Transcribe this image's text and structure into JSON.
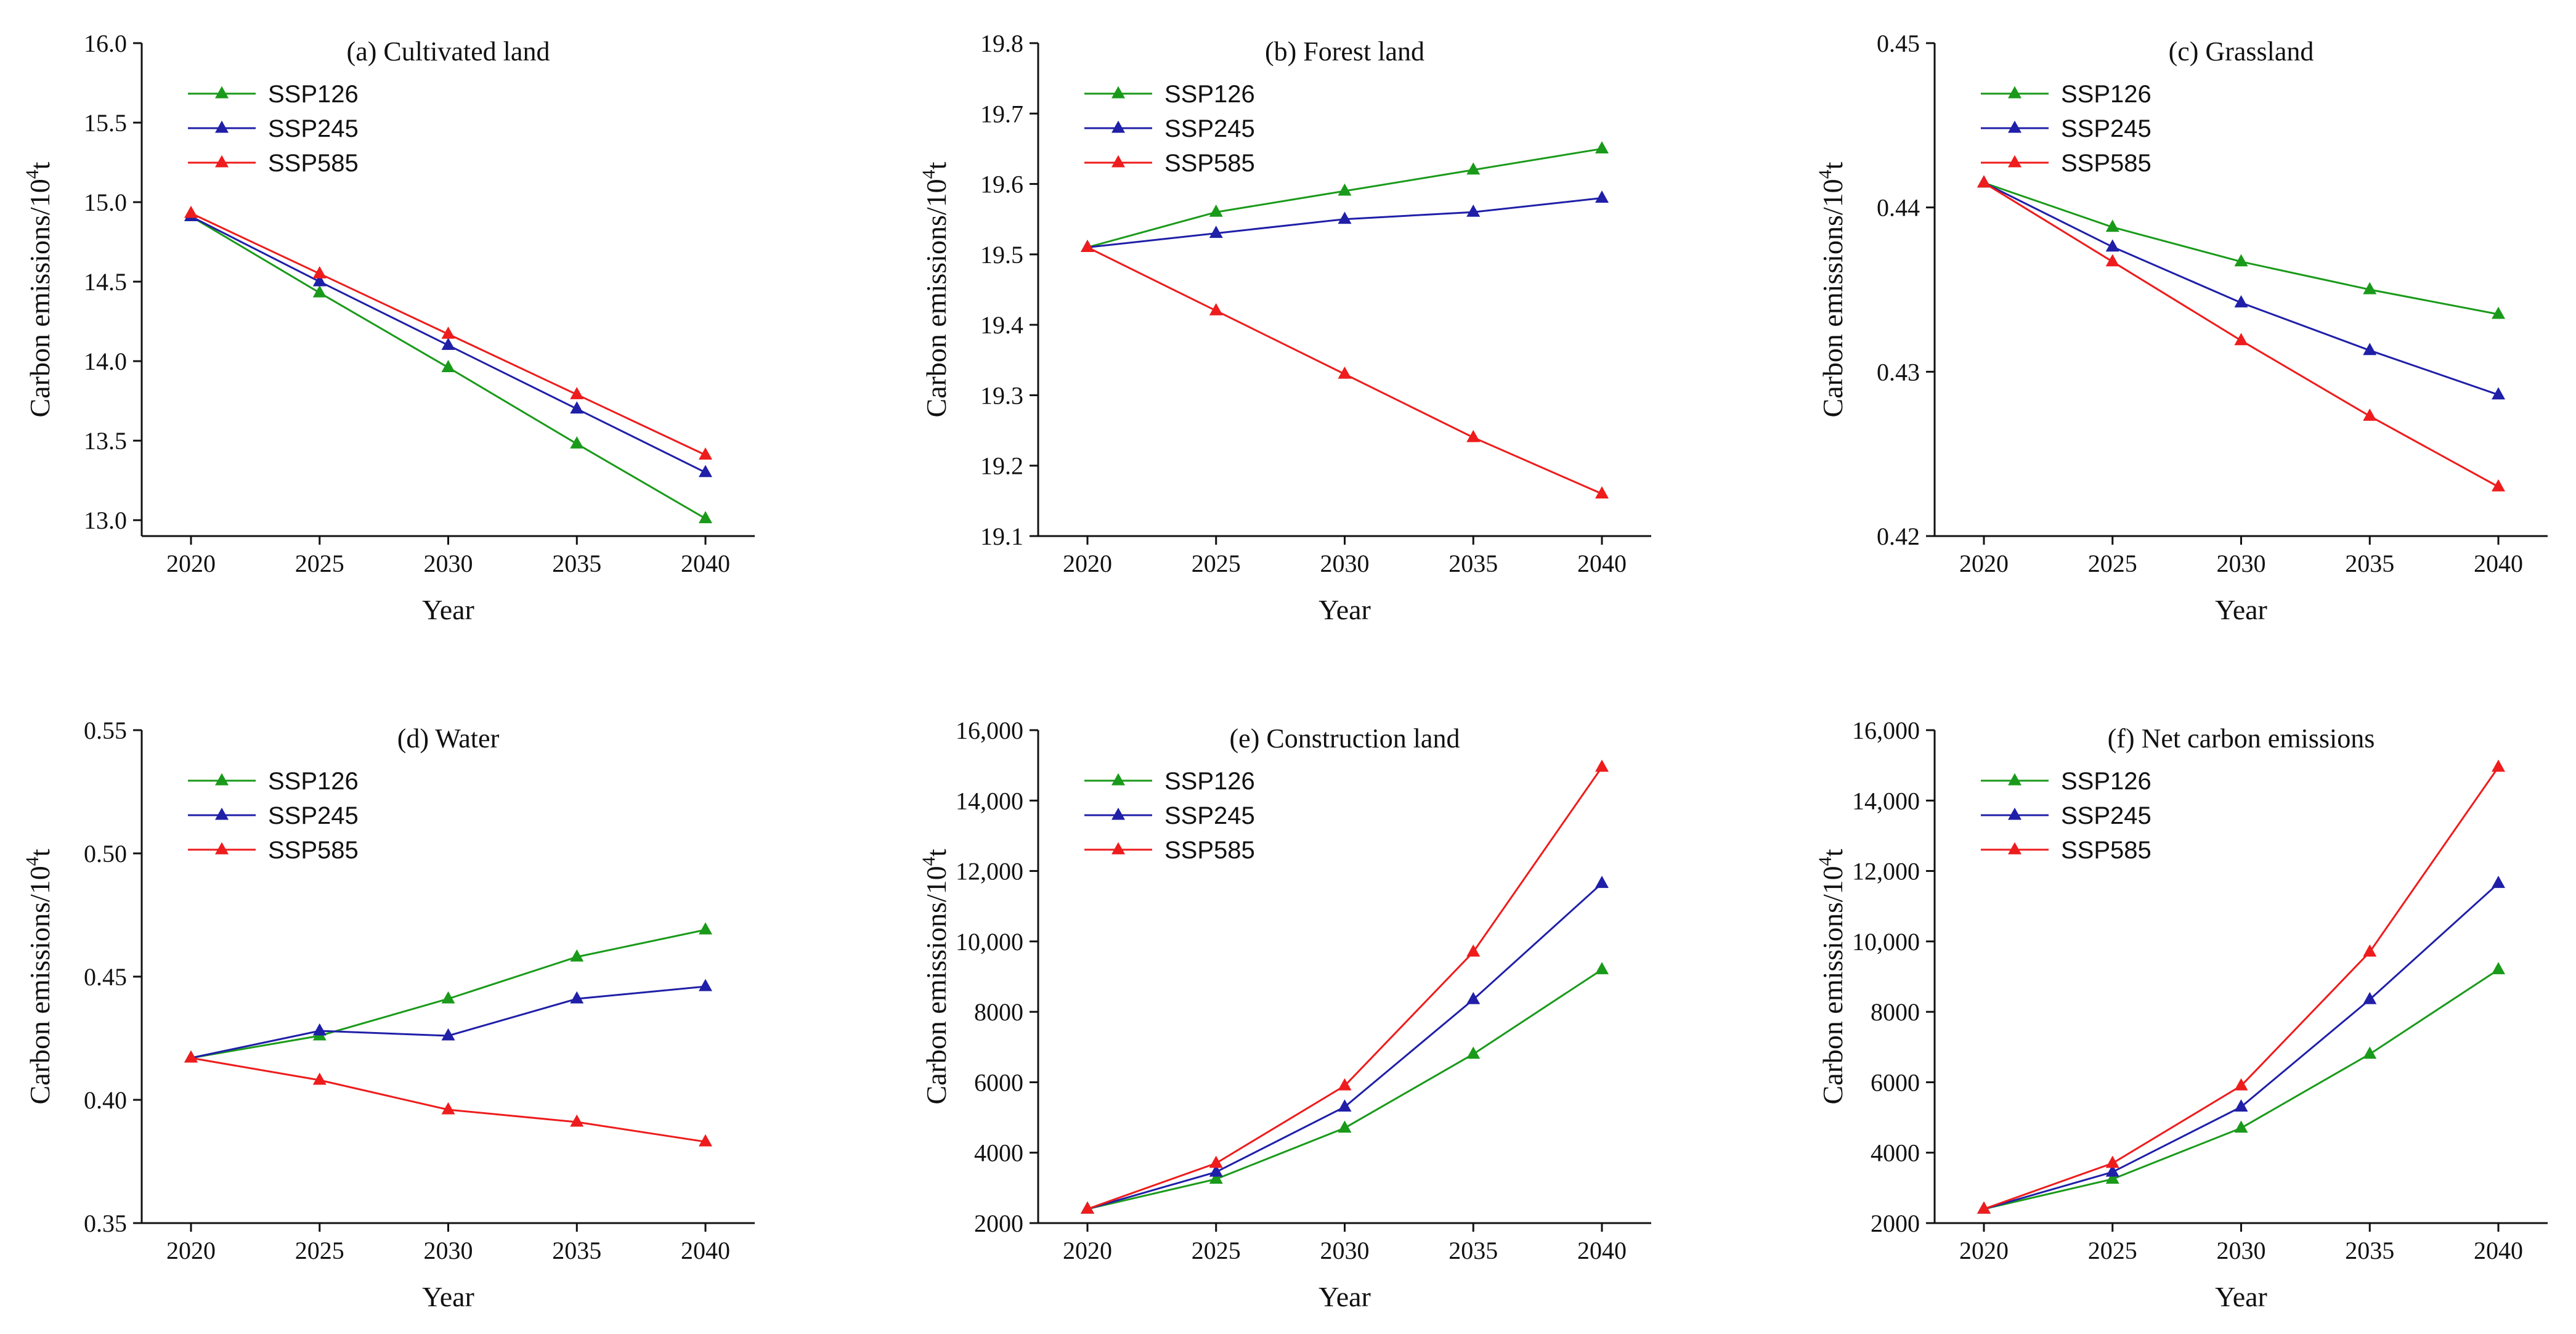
{
  "chart_data": [
    {
      "type": "line",
      "title": "(a) Cultivated land",
      "xlabel": "Year",
      "ylabel": "Carbon emissions/10",
      "ylabel_sup": "4",
      "ylabel_tail": "t",
      "x": [
        2020,
        2025,
        2030,
        2035,
        2040
      ],
      "xticks": [
        "2020",
        "2025",
        "2030",
        "2035",
        "2040"
      ],
      "ylim": [
        12.9,
        16.0
      ],
      "yticks": [
        13.0,
        13.5,
        14.0,
        14.5,
        15.0,
        15.5,
        16.0
      ],
      "ytick_labels": [
        "13.0",
        "13.5",
        "14.0",
        "14.5",
        "15.0",
        "15.5",
        "16.0"
      ],
      "series": [
        {
          "name": "SSP126",
          "color": "#1a9a1a",
          "values": [
            14.91,
            14.43,
            13.96,
            13.48,
            13.01
          ]
        },
        {
          "name": "SSP245",
          "color": "#1f1fa8",
          "values": [
            14.91,
            14.5,
            14.1,
            13.7,
            13.3
          ]
        },
        {
          "name": "SSP585",
          "color": "#ee1c1c",
          "values": [
            14.93,
            14.55,
            14.17,
            13.79,
            13.41
          ]
        }
      ]
    },
    {
      "type": "line",
      "title": "(b) Forest land",
      "xlabel": "Year",
      "ylabel": "Carbon emissions/10",
      "ylabel_sup": "4",
      "ylabel_tail": "t",
      "x": [
        2020,
        2025,
        2030,
        2035,
        2040
      ],
      "xticks": [
        "2020",
        "2025",
        "2030",
        "2035",
        "2040"
      ],
      "ylim": [
        19.1,
        19.8
      ],
      "yticks": [
        19.1,
        19.2,
        19.3,
        19.4,
        19.5,
        19.6,
        19.7,
        19.8
      ],
      "ytick_labels": [
        "19.1",
        "19.2",
        "19.3",
        "19.4",
        "19.5",
        "19.6",
        "19.7",
        "19.8"
      ],
      "series": [
        {
          "name": "SSP126",
          "color": "#1a9a1a",
          "values": [
            19.51,
            19.56,
            19.59,
            19.62,
            19.65
          ]
        },
        {
          "name": "SSP245",
          "color": "#1f1fa8",
          "values": [
            19.51,
            19.53,
            19.55,
            19.56,
            19.58
          ]
        },
        {
          "name": "SSP585",
          "color": "#ee1c1c",
          "values": [
            19.51,
            19.42,
            19.33,
            19.24,
            19.16
          ]
        }
      ]
    },
    {
      "type": "line",
      "title": "(c) Grassland",
      "xlabel": "Year",
      "ylabel": "Carbon emissions/10",
      "ylabel_sup": "4",
      "ylabel_tail": "t",
      "x": [
        2020,
        2025,
        2030,
        2035,
        2040
      ],
      "xticks": [
        "2020",
        "2025",
        "2030",
        "2035",
        "2040"
      ],
      "ylim": [
        0.42,
        0.45
      ],
      "yticks": [
        0.42,
        0.43,
        0.44,
        0.45
      ],
      "ytick_labels": [
        "0.42",
        "0.43",
        "0.44",
        "0.45"
      ],
      "series": [
        {
          "name": "SSP126",
          "color": "#1a9a1a",
          "values": [
            0.4415,
            0.4388,
            0.4367,
            0.435,
            0.4335
          ]
        },
        {
          "name": "SSP245",
          "color": "#1f1fa8",
          "values": [
            0.4415,
            0.4376,
            0.4342,
            0.4313,
            0.4286
          ]
        },
        {
          "name": "SSP585",
          "color": "#ee1c1c",
          "values": [
            0.4415,
            0.4367,
            0.4319,
            0.4273,
            0.423
          ]
        }
      ]
    },
    {
      "type": "line",
      "title": "(d) Water",
      "xlabel": "Year",
      "ylabel": "Carbon emissions/10",
      "ylabel_sup": "4",
      "ylabel_tail": "t",
      "x": [
        2020,
        2025,
        2030,
        2035,
        2040
      ],
      "xticks": [
        "2020",
        "2025",
        "2030",
        "2035",
        "2040"
      ],
      "ylim": [
        0.35,
        0.55
      ],
      "yticks": [
        0.35,
        0.4,
        0.45,
        0.5,
        0.55
      ],
      "ytick_labels": [
        "0.35",
        "0.40",
        "0.45",
        "0.50",
        "0.55"
      ],
      "series": [
        {
          "name": "SSP126",
          "color": "#1a9a1a",
          "values": [
            0.417,
            0.426,
            0.441,
            0.458,
            0.469
          ]
        },
        {
          "name": "SSP245",
          "color": "#1f1fa8",
          "values": [
            0.417,
            0.428,
            0.426,
            0.441,
            0.446
          ]
        },
        {
          "name": "SSP585",
          "color": "#ee1c1c",
          "values": [
            0.417,
            0.408,
            0.396,
            0.391,
            0.383
          ]
        }
      ]
    },
    {
      "type": "line",
      "title": "(e) Construction land",
      "xlabel": "Year",
      "ylabel": "Carbon emissions/10",
      "ylabel_sup": "4",
      "ylabel_tail": "t",
      "x": [
        2020,
        2025,
        2030,
        2035,
        2040
      ],
      "xticks": [
        "2020",
        "2025",
        "2030",
        "2035",
        "2040"
      ],
      "ylim": [
        2000,
        16000
      ],
      "yticks": [
        2000,
        4000,
        6000,
        8000,
        10000,
        12000,
        14000,
        16000
      ],
      "ytick_labels": [
        "2000",
        "4000",
        "6000",
        "8000",
        "10,000",
        "12,000",
        "14,000",
        "16,000"
      ],
      "series": [
        {
          "name": "SSP126",
          "color": "#1a9a1a",
          "values": [
            2400,
            3250,
            4700,
            6800,
            9200
          ]
        },
        {
          "name": "SSP245",
          "color": "#1f1fa8",
          "values": [
            2400,
            3450,
            5300,
            8350,
            11650
          ]
        },
        {
          "name": "SSP585",
          "color": "#ee1c1c",
          "values": [
            2400,
            3700,
            5900,
            9700,
            14950
          ]
        }
      ]
    },
    {
      "type": "line",
      "title": "(f) Net carbon emissions",
      "xlabel": "Year",
      "ylabel": "Carbon emissions/10",
      "ylabel_sup": "4",
      "ylabel_tail": "t",
      "x": [
        2020,
        2025,
        2030,
        2035,
        2040
      ],
      "xticks": [
        "2020",
        "2025",
        "2030",
        "2035",
        "2040"
      ],
      "ylim": [
        2000,
        16000
      ],
      "yticks": [
        2000,
        4000,
        6000,
        8000,
        10000,
        12000,
        14000,
        16000
      ],
      "ytick_labels": [
        "2000",
        "4000",
        "6000",
        "8000",
        "10,000",
        "12,000",
        "14,000",
        "16,000"
      ],
      "series": [
        {
          "name": "SSP126",
          "color": "#1a9a1a",
          "values": [
            2400,
            3250,
            4700,
            6800,
            9200
          ]
        },
        {
          "name": "SSP245",
          "color": "#1f1fa8",
          "values": [
            2400,
            3450,
            5300,
            8350,
            11650
          ]
        },
        {
          "name": "SSP585",
          "color": "#ee1c1c",
          "values": [
            2400,
            3700,
            5900,
            9700,
            14950
          ]
        }
      ]
    }
  ]
}
